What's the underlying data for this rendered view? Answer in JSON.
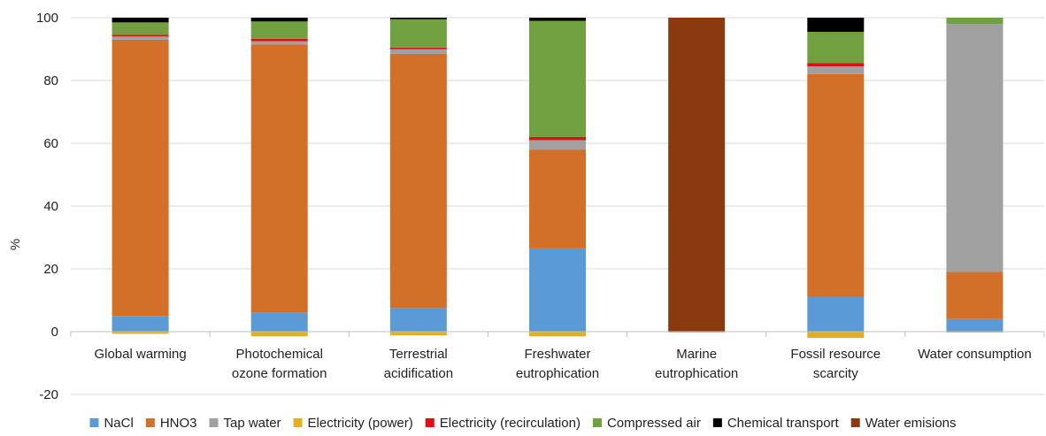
{
  "chart_data": {
    "type": "bar",
    "stacked": true,
    "title": "",
    "xlabel": "",
    "ylabel": "%",
    "ylim": [
      -20,
      100
    ],
    "yticks": [
      -20,
      0,
      20,
      40,
      60,
      80,
      100
    ],
    "grid": true,
    "legend_position": "bottom",
    "categories": [
      [
        "Global warming"
      ],
      [
        "Photochemical",
        "ozone formation"
      ],
      [
        "Terrestrial",
        "acidification"
      ],
      [
        "Freshwater",
        "eutrophication"
      ],
      [
        "Marine",
        "eutrophication"
      ],
      [
        "Fossil resource",
        "scarcity"
      ],
      [
        "Water consumption"
      ]
    ],
    "series": [
      {
        "name": "NaCl",
        "color": "#5b9bd5",
        "values": [
          5,
          6,
          7.5,
          26.5,
          0,
          11,
          4
        ]
      },
      {
        "name": "HNO3",
        "color": "#d2702a",
        "values": [
          88,
          85.5,
          81,
          31.5,
          0,
          71,
          15
        ]
      },
      {
        "name": "Tap water",
        "color": "#a0a0a0",
        "values": [
          1,
          1,
          1.5,
          3,
          0,
          2.5,
          79
        ]
      },
      {
        "name": "Electricity (power)",
        "color": "#e0b020",
        "values": [
          -0.7,
          -1.5,
          -1.2,
          -1.5,
          -0.3,
          -2,
          -0.3
        ]
      },
      {
        "name": "Electricity (recirculation)",
        "color": "#e01010",
        "values": [
          0.5,
          0.8,
          0.5,
          1,
          0,
          1,
          0
        ]
      },
      {
        "name": "Compressed air",
        "color": "#70a040",
        "values": [
          4,
          5.5,
          9,
          37,
          0,
          10,
          2
        ]
      },
      {
        "name": "Chemical transport",
        "color": "#000000",
        "values": [
          1.5,
          1.2,
          0.5,
          1,
          0,
          4.5,
          0
        ]
      },
      {
        "name": "Water emisions",
        "color": "#8b3a0f",
        "values": [
          0,
          0,
          0,
          0,
          100,
          0,
          0
        ]
      }
    ]
  }
}
